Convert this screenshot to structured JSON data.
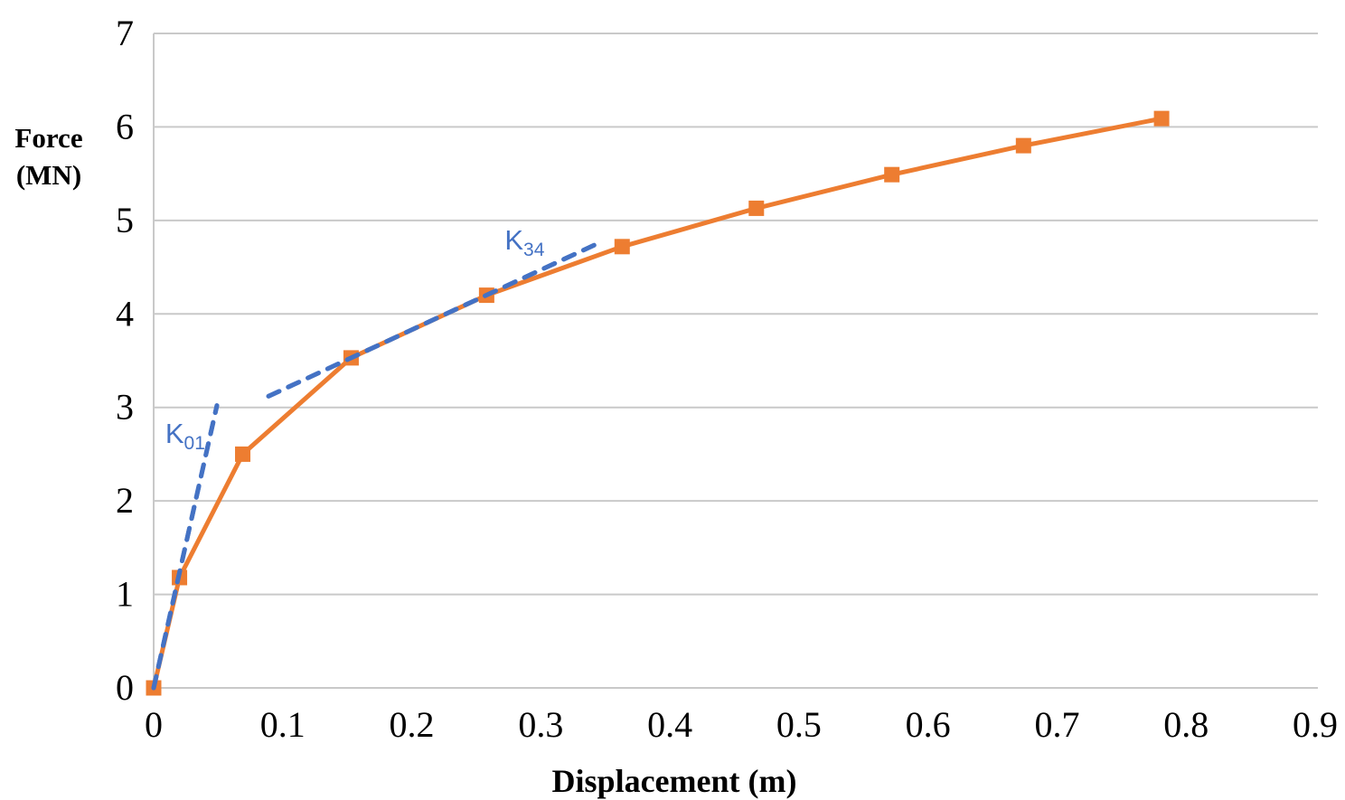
{
  "chart_data": {
    "type": "line",
    "title": "",
    "xlabel": "Displacement (m)",
    "ylabel": "Force (MN)",
    "ylabel_lines": [
      "Force",
      "(MN)"
    ],
    "xlim": [
      0,
      0.9
    ],
    "ylim": [
      0,
      7
    ],
    "x_ticks": [
      "0",
      "0.1",
      "0.2",
      "0.3",
      "0.4",
      "0.5",
      "0.6",
      "0.7",
      "0.8",
      "0.9"
    ],
    "y_ticks": [
      "0",
      "1",
      "2",
      "3",
      "4",
      "5",
      "6",
      "7"
    ],
    "grid": "horizontal-only",
    "legend": "none",
    "series": [
      {
        "name": "force-displacement curve",
        "color": "#ED7D31",
        "marker": "square",
        "line_style": "solid",
        "points": [
          {
            "x": 0,
            "y": 0
          },
          {
            "x": 0.02,
            "y": 1.18
          },
          {
            "x": 0.069,
            "y": 2.5
          },
          {
            "x": 0.153,
            "y": 3.53
          },
          {
            "x": 0.258,
            "y": 4.2
          },
          {
            "x": 0.363,
            "y": 4.72
          },
          {
            "x": 0.467,
            "y": 5.13
          },
          {
            "x": 0.572,
            "y": 5.49
          },
          {
            "x": 0.674,
            "y": 5.8
          },
          {
            "x": 0.781,
            "y": 6.09
          }
        ]
      },
      {
        "name": "K01 secant stiffness line",
        "color": "#4472C4",
        "marker": "none",
        "line_style": "dashed",
        "points": [
          {
            "x": 0,
            "y": 0
          },
          {
            "x": 0.049,
            "y": 3.02
          }
        ]
      },
      {
        "name": "K34 secant stiffness line",
        "color": "#4472C4",
        "marker": "none",
        "line_style": "dashed",
        "points": [
          {
            "x": 0.089,
            "y": 3.12
          },
          {
            "x": 0.342,
            "y": 4.74
          }
        ]
      }
    ],
    "annotations": [
      {
        "main": "K",
        "sub": "01",
        "color": "#4472C4",
        "x": 0.009,
        "y": 2.87
      },
      {
        "main": "K",
        "sub": "34",
        "color": "#4472C4",
        "x": 0.272,
        "y": 4.94
      }
    ]
  },
  "colors": {
    "background": "#FFFFFF",
    "gridline": "#C9C9C9",
    "axis_line": "#C9C9C9",
    "tick_text": "#000000",
    "series_orange": "#ED7D31",
    "stiffness_blue": "#4472C4"
  }
}
